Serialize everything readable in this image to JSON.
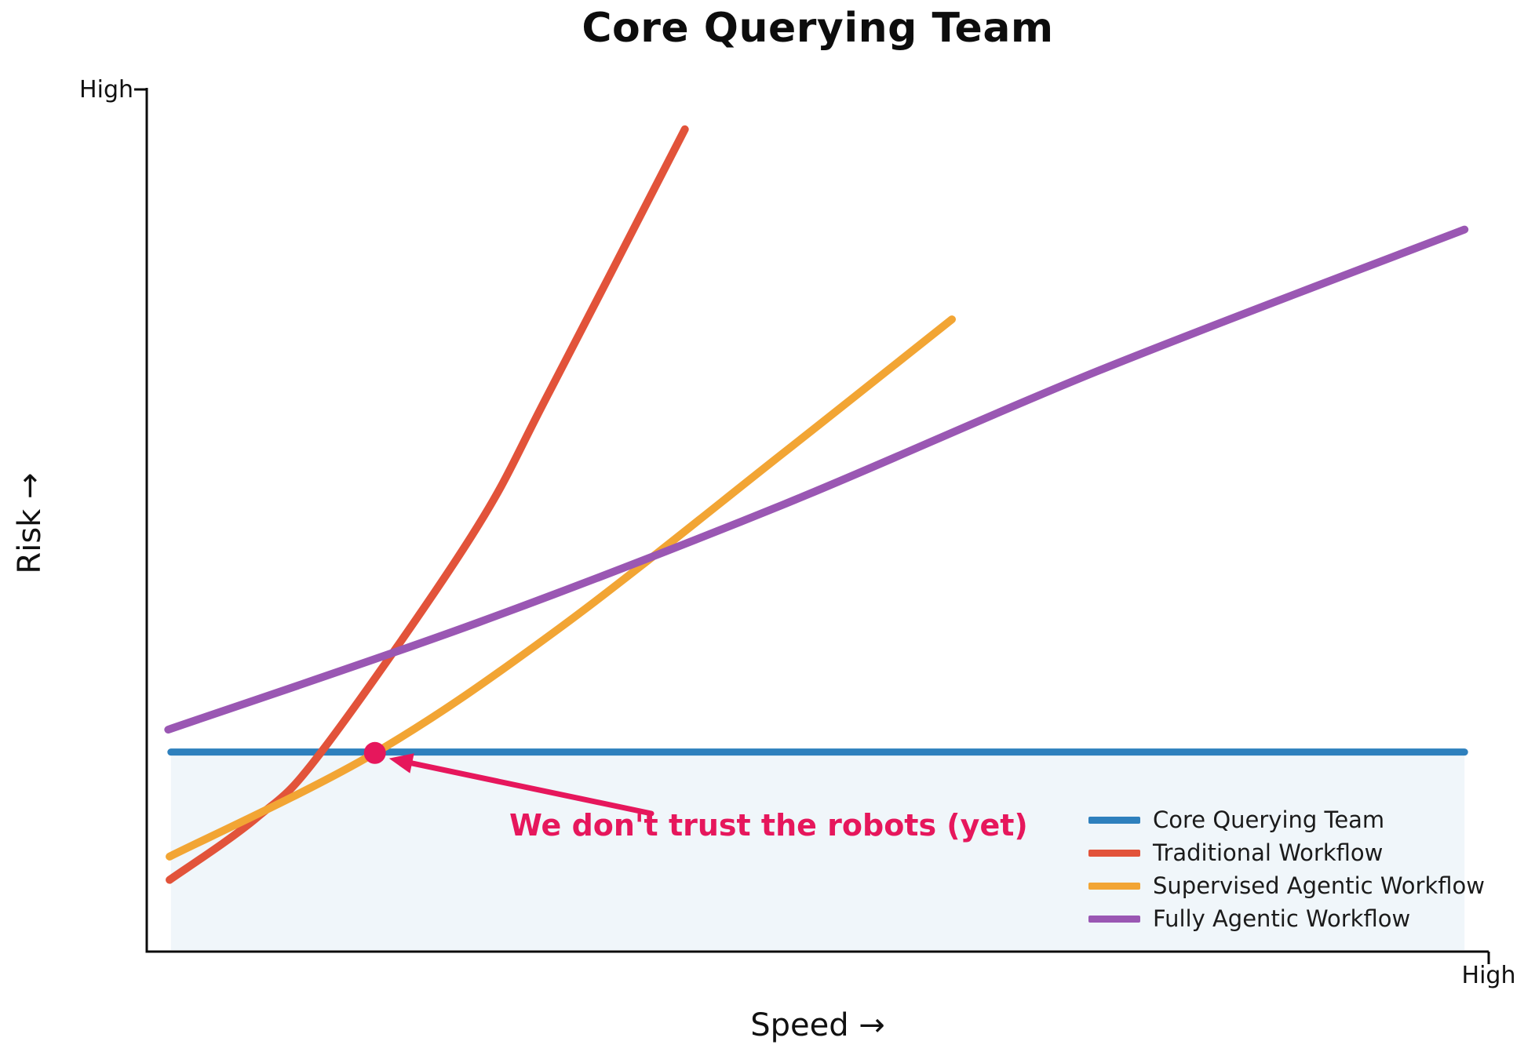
{
  "chart_data": {
    "type": "line",
    "title": "Core Querying Team",
    "xlabel": "Speed →",
    "ylabel": "Risk →",
    "x_tick_labels": [
      "High"
    ],
    "y_tick_labels": [
      "High"
    ],
    "xlim": [
      0,
      100
    ],
    "ylim": [
      0,
      100
    ],
    "grid": false,
    "legend_position": "lower right",
    "series": [
      {
        "name": "Core Querying Team",
        "color": "#2e80bd",
        "line_width": 9,
        "points": [
          [
            1.8,
            23.1
          ],
          [
            98.2,
            23.1
          ]
        ],
        "fill_below": true,
        "fill_color": "rgba(46,128,189,0.07)"
      },
      {
        "name": "Traditional Workflow",
        "color": "#e2533a",
        "line_width": 10,
        "points": [
          [
            1.7,
            8.3
          ],
          [
            8.2,
            15.5
          ],
          [
            13.0,
            23.1
          ],
          [
            24.2,
            48.1
          ],
          [
            30.0,
            64.8
          ],
          [
            40.1,
            95.2
          ]
        ]
      },
      {
        "name": "Supervised Agentic Workflow",
        "color": "#f2a534",
        "line_width": 10,
        "points": [
          [
            1.7,
            11.0
          ],
          [
            17.0,
            23.0
          ],
          [
            30.8,
            37.5
          ],
          [
            47.5,
            57.8
          ],
          [
            60.0,
            73.2
          ]
        ]
      },
      {
        "name": "Fully Agentic Workflow",
        "color": "#9a57b3",
        "line_width": 10,
        "points": [
          [
            1.6,
            25.7
          ],
          [
            24.7,
            38.1
          ],
          [
            47.5,
            51.8
          ],
          [
            71.0,
            67.3
          ],
          [
            98.2,
            83.6
          ]
        ]
      }
    ],
    "annotation": {
      "text": "We don't trust the robots (yet)",
      "color": "#e6175c",
      "point": [
        17.0,
        23.0
      ],
      "marker": "dot"
    }
  }
}
